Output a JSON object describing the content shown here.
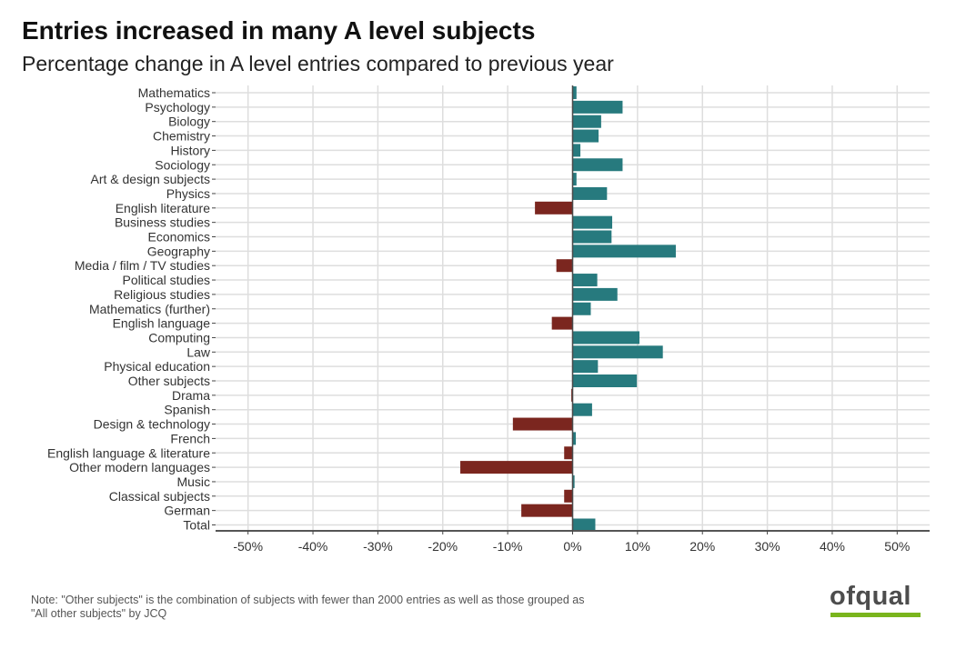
{
  "title": "Entries increased in many A level subjects",
  "subtitle": "Percentage change in A level entries compared to previous year",
  "note_line1": "Note: \"Other subjects\" is the combination of subjects with fewer than 2000 entries as well as those grouped as",
  "note_line2": "\"All other subjects\" by JCQ",
  "logo_text": "ofqual",
  "colors": {
    "positive": "#277a7e",
    "negative": "#7b261f",
    "grid": "#dedede",
    "axis": "#555555",
    "logo_bar": "#7ab51d"
  },
  "chart_data": {
    "type": "bar",
    "orientation": "horizontal",
    "title": "Entries increased in many A level subjects",
    "subtitle": "Percentage change in A level entries compared to previous year",
    "xlabel": "",
    "ylabel": "",
    "xlim": [
      -55,
      55
    ],
    "ticks": [
      -50,
      -40,
      -30,
      -20,
      -10,
      0,
      10,
      20,
      30,
      40,
      50
    ],
    "tick_labels": [
      "-50%",
      "-40%",
      "-30%",
      "-20%",
      "-10%",
      "0%",
      "10%",
      "20%",
      "30%",
      "40%",
      "50%"
    ],
    "grid": true,
    "legend": "none",
    "categories": [
      "Mathematics",
      "Psychology",
      "Biology",
      "Chemistry",
      "History",
      "Sociology",
      "Art & design subjects",
      "Physics",
      "English literature",
      "Business studies",
      "Economics",
      "Geography",
      "Media / film / TV studies",
      "Political studies",
      "Religious studies",
      "Mathematics (further)",
      "English language",
      "Computing",
      "Law",
      "Physical education",
      "Other subjects",
      "Drama",
      "Spanish",
      "Design & technology",
      "French",
      "English language & literature",
      "Other modern languages",
      "Music",
      "Classical subjects",
      "German",
      "Total"
    ],
    "values": [
      0.6,
      7.7,
      4.4,
      4.0,
      1.2,
      7.7,
      0.6,
      5.3,
      -5.8,
      6.1,
      6.0,
      15.9,
      -2.5,
      3.8,
      6.9,
      2.8,
      -3.2,
      10.3,
      13.9,
      3.9,
      9.9,
      -0.2,
      3.0,
      -9.2,
      0.5,
      -1.3,
      -17.3,
      0.3,
      -1.3,
      -7.9,
      3.5
    ]
  }
}
